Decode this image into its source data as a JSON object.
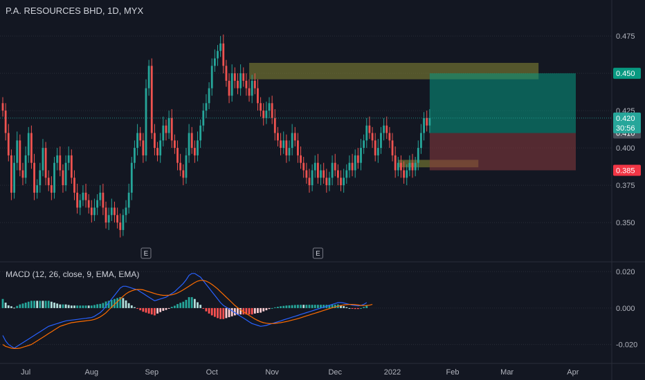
{
  "header": {
    "title": "P.A. RESOURCES BHD, 1D, MYX"
  },
  "macd_header": {
    "title": "MACD (12, 26, close, 9, EMA, EMA)"
  },
  "colors": {
    "background": "#131722",
    "up": "#26a69a",
    "down": "#ef5350",
    "macd_line": "#2962ff",
    "signal_line": "#ff6d00",
    "grid": "#2a2e39"
  },
  "chart_data": [
    {
      "type": "candlestick",
      "title": "P.A. RESOURCES BHD, 1D, MYX",
      "ylim": [
        0.338,
        0.482
      ],
      "y_ticks": [
        "0.475",
        "0.450",
        "0.425",
        "0.400",
        "0.375",
        "0.350"
      ],
      "y_tick_values": [
        0.475,
        0.45,
        0.425,
        0.4,
        0.375,
        0.35
      ],
      "x_ticks": [
        "Jul",
        "Aug",
        "Sep",
        "Oct",
        "Nov",
        "Dec",
        "2022",
        "Feb",
        "Mar",
        "Apr"
      ],
      "x_tick_bars": [
        8,
        31,
        52,
        73,
        94,
        116,
        136,
        157,
        176,
        199
      ],
      "earnings_markers": [
        {
          "label": "E",
          "bar": 50
        },
        {
          "label": "E",
          "bar": 110
        }
      ],
      "candles_close": [
        0.425,
        0.41,
        0.395,
        0.37,
        0.39,
        0.405,
        0.385,
        0.38,
        0.395,
        0.41,
        0.39,
        0.37,
        0.375,
        0.385,
        0.4,
        0.38,
        0.375,
        0.37,
        0.39,
        0.395,
        0.385,
        0.375,
        0.39,
        0.395,
        0.38,
        0.37,
        0.36,
        0.365,
        0.37,
        0.365,
        0.36,
        0.355,
        0.36,
        0.365,
        0.37,
        0.36,
        0.35,
        0.355,
        0.36,
        0.355,
        0.35,
        0.345,
        0.355,
        0.36,
        0.37,
        0.39,
        0.4,
        0.41,
        0.405,
        0.395,
        0.44,
        0.455,
        0.41,
        0.4,
        0.395,
        0.405,
        0.415,
        0.41,
        0.42,
        0.405,
        0.4,
        0.39,
        0.385,
        0.38,
        0.395,
        0.41,
        0.4,
        0.395,
        0.405,
        0.415,
        0.425,
        0.43,
        0.44,
        0.455,
        0.46,
        0.465,
        0.47,
        0.455,
        0.445,
        0.435,
        0.45,
        0.445,
        0.44,
        0.45,
        0.445,
        0.44,
        0.435,
        0.445,
        0.44,
        0.43,
        0.425,
        0.42,
        0.425,
        0.43,
        0.42,
        0.41,
        0.405,
        0.4,
        0.405,
        0.395,
        0.4,
        0.41,
        0.405,
        0.395,
        0.39,
        0.385,
        0.38,
        0.375,
        0.385,
        0.39,
        0.38,
        0.385,
        0.38,
        0.375,
        0.38,
        0.39,
        0.385,
        0.38,
        0.375,
        0.38,
        0.385,
        0.39,
        0.385,
        0.395,
        0.39,
        0.4,
        0.405,
        0.415,
        0.41,
        0.405,
        0.395,
        0.4,
        0.41,
        0.415,
        0.41,
        0.405,
        0.395,
        0.385,
        0.39,
        0.385,
        0.38,
        0.385,
        0.39,
        0.385,
        0.39,
        0.4,
        0.41,
        0.42,
        0.415,
        0.42
      ],
      "current_price": "0.420",
      "countdown": "30:56",
      "price_labels": [
        {
          "value": 0.45,
          "text": "0.450",
          "color": "#089981"
        },
        {
          "value": 0.41,
          "text": "0.410",
          "color": "#4a4e59"
        },
        {
          "value": 0.385,
          "text": "0.385",
          "color": "#f23645"
        }
      ],
      "zones": [
        {
          "kind": "supply",
          "y_top": 0.457,
          "y_bottom": 0.446,
          "bar_start": 86,
          "bar_end": 187,
          "color": "#8b8a35"
        },
        {
          "kind": "demand",
          "y_top": 0.392,
          "y_bottom": 0.387,
          "bar_start": 138,
          "bar_end": 166,
          "color": "#8b8a35"
        },
        {
          "kind": "target",
          "y_top": 0.45,
          "y_bottom": 0.41,
          "bar_start": 149,
          "bar_end": 200,
          "color": "#089981"
        },
        {
          "kind": "stop",
          "y_top": 0.41,
          "y_bottom": 0.385,
          "bar_start": 149,
          "bar_end": 200,
          "color": "#8b3a3e"
        }
      ]
    },
    {
      "type": "macd",
      "title": "MACD (12, 26, close, 9, EMA, EMA)",
      "ylim": [
        -0.03,
        0.025
      ],
      "y_ticks": [
        "0.020",
        "0.000",
        "-0.020"
      ],
      "y_tick_values": [
        0.02,
        0.0,
        -0.02
      ],
      "macd": [
        -0.015,
        -0.018,
        -0.02,
        -0.021,
        -0.022,
        -0.021,
        -0.02,
        -0.019,
        -0.018,
        -0.017,
        -0.016,
        -0.015,
        -0.014,
        -0.013,
        -0.012,
        -0.011,
        -0.01,
        -0.0095,
        -0.009,
        -0.0085,
        -0.008,
        -0.0075,
        -0.007,
        -0.0068,
        -0.0066,
        -0.0064,
        -0.0062,
        -0.006,
        -0.0058,
        -0.0056,
        -0.0054,
        -0.0052,
        -0.0045,
        -0.0035,
        -0.0025,
        -0.001,
        0.001,
        0.003,
        0.005,
        0.007,
        0.009,
        0.011,
        0.012,
        0.012,
        0.0115,
        0.011,
        0.0105,
        0.01,
        0.009,
        0.008,
        0.007,
        0.006,
        0.005,
        0.004,
        0.0045,
        0.005,
        0.0055,
        0.006,
        0.007,
        0.008,
        0.009,
        0.0105,
        0.012,
        0.0135,
        0.0155,
        0.018,
        0.019,
        0.019,
        0.018,
        0.017,
        0.015,
        0.013,
        0.011,
        0.009,
        0.007,
        0.005,
        0.003,
        0.0015,
        0.0005,
        -0.0005,
        -0.0015,
        -0.0025,
        -0.0035,
        -0.0045,
        -0.0055,
        -0.0065,
        -0.0075,
        -0.0085,
        -0.009,
        -0.0095,
        -0.01,
        -0.0098,
        -0.0095,
        -0.009,
        -0.0085,
        -0.008,
        -0.0075,
        -0.007,
        -0.0065,
        -0.006,
        -0.0055,
        -0.005,
        -0.0045,
        -0.004,
        -0.0035,
        -0.003,
        -0.0025,
        -0.002,
        -0.0015,
        -0.001,
        -0.0005,
        0.0,
        0.0005,
        0.001,
        0.0015,
        0.002,
        0.0025,
        0.003,
        0.003,
        0.0028,
        0.0024,
        0.002,
        0.0016,
        0.0014,
        0.0012,
        0.0015,
        0.002,
        0.003
      ],
      "signal": [
        -0.02,
        -0.021,
        -0.0215,
        -0.022,
        -0.0222,
        -0.0222,
        -0.022,
        -0.0215,
        -0.021,
        -0.0205,
        -0.02,
        -0.019,
        -0.018,
        -0.017,
        -0.016,
        -0.015,
        -0.014,
        -0.013,
        -0.012,
        -0.011,
        -0.01,
        -0.0095,
        -0.009,
        -0.0085,
        -0.008,
        -0.0078,
        -0.0076,
        -0.0074,
        -0.0072,
        -0.007,
        -0.0068,
        -0.0066,
        -0.0062,
        -0.0056,
        -0.0048,
        -0.0038,
        -0.0026,
        -0.001,
        0.0005,
        0.002,
        0.0035,
        0.005,
        0.0065,
        0.0078,
        0.0088,
        0.0095,
        0.01,
        0.0102,
        0.0102,
        0.01,
        0.0095,
        0.009,
        0.0085,
        0.008,
        0.0075,
        0.0072,
        0.007,
        0.007,
        0.0071,
        0.0073,
        0.0077,
        0.0083,
        0.0091,
        0.01,
        0.011,
        0.012,
        0.013,
        0.014,
        0.0148,
        0.0152,
        0.0152,
        0.0148,
        0.014,
        0.013,
        0.0118,
        0.0105,
        0.009,
        0.0075,
        0.006,
        0.0045,
        0.003,
        0.0015,
        0.0002,
        -0.001,
        -0.002,
        -0.003,
        -0.004,
        -0.005,
        -0.006,
        -0.0068,
        -0.0075,
        -0.008,
        -0.0083,
        -0.0085,
        -0.0085,
        -0.0084,
        -0.0082,
        -0.008,
        -0.0077,
        -0.0074,
        -0.007,
        -0.0066,
        -0.0062,
        -0.0058,
        -0.0053,
        -0.0048,
        -0.0043,
        -0.0038,
        -0.0033,
        -0.0028,
        -0.0023,
        -0.0018,
        -0.0013,
        -0.0008,
        -0.0003,
        0.0002,
        0.0006,
        0.001,
        0.0014,
        0.0017,
        0.0019,
        0.002,
        0.002,
        0.0019,
        0.0017,
        0.0015,
        0.0014,
        0.0014,
        0.0016,
        0.002
      ]
    }
  ]
}
